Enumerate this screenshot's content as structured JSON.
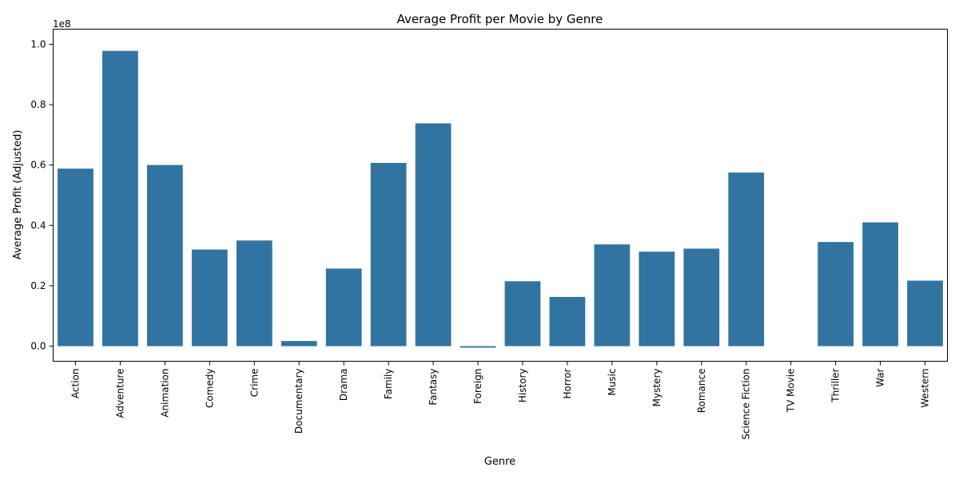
{
  "chart_data": {
    "type": "bar",
    "title": "Average Profit per Movie by Genre",
    "xlabel": "Genre",
    "ylabel": "Average Profit (Adjusted)",
    "y_offset_label": "1e8",
    "y_scale_factor": 100000000,
    "ylim": [
      -0.05,
      1.05
    ],
    "yticks": [
      0.0,
      0.2,
      0.4,
      0.6,
      0.8,
      1.0
    ],
    "ytick_labels": [
      "0.0",
      "0.2",
      "0.4",
      "0.6",
      "0.8",
      "1.0"
    ],
    "grid": false,
    "bar_color": "#3274a1",
    "categories": [
      "Action",
      "Adventure",
      "Animation",
      "Comedy",
      "Crime",
      "Documentary",
      "Drama",
      "Family",
      "Fantasy",
      "Foreign",
      "History",
      "Horror",
      "Music",
      "Mystery",
      "Romance",
      "Science Fiction",
      "TV Movie",
      "Thriller",
      "War",
      "Western"
    ],
    "values": [
      0.588,
      0.978,
      0.6,
      0.32,
      0.35,
      0.017,
      0.257,
      0.607,
      0.738,
      -0.005,
      0.215,
      0.163,
      0.337,
      0.313,
      0.323,
      0.575,
      0.0,
      0.345,
      0.41,
      0.217
    ]
  }
}
